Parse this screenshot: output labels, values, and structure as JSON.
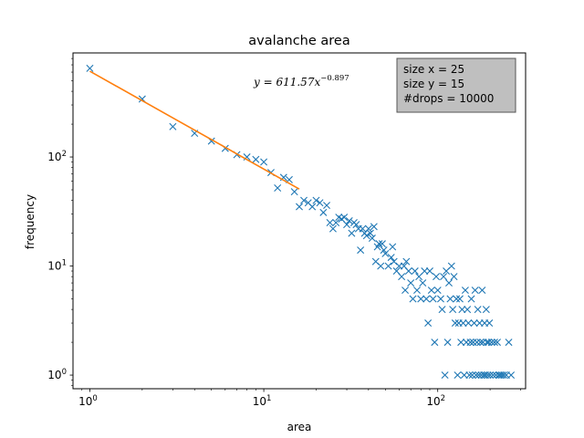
{
  "chart_data": {
    "type": "scatter",
    "title": "avalanche area",
    "xlabel": "area",
    "ylabel": "frequency",
    "xscale": "log",
    "yscale": "log",
    "xlim": [
      0.8,
      320
    ],
    "ylim": [
      0.75,
      900
    ],
    "grid": false,
    "x_ticks": [
      {
        "value": 1,
        "base": "10",
        "exp": "0"
      },
      {
        "value": 10,
        "base": "10",
        "exp": "1"
      },
      {
        "value": 100,
        "base": "10",
        "exp": "2"
      }
    ],
    "y_ticks": [
      {
        "value": 1,
        "base": "10",
        "exp": "0"
      },
      {
        "value": 10,
        "base": "10",
        "exp": "1"
      },
      {
        "value": 100,
        "base": "10",
        "exp": "2"
      }
    ],
    "fit": {
      "label_prefix": "y = 611.57x",
      "label_exponent": "−0.897",
      "a": 611.57,
      "b": -0.897,
      "x_range": [
        1,
        16
      ],
      "color": "#ff7f0e"
    },
    "info_box": {
      "lines": [
        "size x = 25",
        "size y = 15",
        "#drops = 10000"
      ],
      "background": "#bfbfbf",
      "placement": "top-right"
    },
    "series": [
      {
        "marker": "x",
        "color": "#1f77b4",
        "points": [
          [
            1,
            650
          ],
          [
            2,
            340
          ],
          [
            3,
            190
          ],
          [
            4,
            165
          ],
          [
            5,
            140
          ],
          [
            6,
            120
          ],
          [
            7,
            105
          ],
          [
            8,
            100
          ],
          [
            9,
            95
          ],
          [
            10,
            90
          ],
          [
            11,
            72
          ],
          [
            12,
            52
          ],
          [
            13,
            65
          ],
          [
            14,
            62
          ],
          [
            15,
            48
          ],
          [
            16,
            35
          ],
          [
            17,
            40
          ],
          [
            18,
            38
          ],
          [
            19,
            35
          ],
          [
            20,
            40
          ],
          [
            21,
            38
          ],
          [
            22,
            31
          ],
          [
            23,
            36
          ],
          [
            24,
            25
          ],
          [
            25,
            22
          ],
          [
            26,
            25
          ],
          [
            27,
            28
          ],
          [
            28,
            27
          ],
          [
            29,
            28
          ],
          [
            30,
            24
          ],
          [
            31,
            26
          ],
          [
            32,
            20
          ],
          [
            33,
            25
          ],
          [
            34,
            24
          ],
          [
            35,
            22
          ],
          [
            36,
            14
          ],
          [
            37,
            22
          ],
          [
            38,
            20
          ],
          [
            39,
            19
          ],
          [
            40,
            22
          ],
          [
            41,
            20
          ],
          [
            42,
            18
          ],
          [
            43,
            23
          ],
          [
            44,
            11
          ],
          [
            45,
            15
          ],
          [
            46,
            16
          ],
          [
            47,
            10
          ],
          [
            48,
            16
          ],
          [
            49,
            14
          ],
          [
            50,
            13
          ],
          [
            52,
            10
          ],
          [
            54,
            12
          ],
          [
            55,
            15
          ],
          [
            56,
            11
          ],
          [
            58,
            9
          ],
          [
            60,
            10
          ],
          [
            62,
            8
          ],
          [
            64,
            10
          ],
          [
            65,
            6
          ],
          [
            66,
            11
          ],
          [
            68,
            9
          ],
          [
            70,
            7
          ],
          [
            72,
            5
          ],
          [
            74,
            9
          ],
          [
            76,
            6
          ],
          [
            78,
            8
          ],
          [
            80,
            5
          ],
          [
            82,
            7
          ],
          [
            84,
            9
          ],
          [
            86,
            5
          ],
          [
            88,
            3
          ],
          [
            90,
            9
          ],
          [
            92,
            6
          ],
          [
            94,
            5
          ],
          [
            96,
            2
          ],
          [
            98,
            8
          ],
          [
            100,
            6
          ],
          [
            104,
            5
          ],
          [
            106,
            4
          ],
          [
            108,
            8
          ],
          [
            110,
            1
          ],
          [
            112,
            9
          ],
          [
            114,
            2
          ],
          [
            116,
            7
          ],
          [
            118,
            5
          ],
          [
            120,
            10
          ],
          [
            122,
            4
          ],
          [
            124,
            8
          ],
          [
            126,
            3
          ],
          [
            128,
            5
          ],
          [
            130,
            1
          ],
          [
            132,
            3
          ],
          [
            134,
            5
          ],
          [
            136,
            2
          ],
          [
            138,
            4
          ],
          [
            140,
            3
          ],
          [
            142,
            1
          ],
          [
            144,
            6
          ],
          [
            146,
            2
          ],
          [
            148,
            4
          ],
          [
            150,
            3
          ],
          [
            152,
            1
          ],
          [
            154,
            2
          ],
          [
            156,
            5
          ],
          [
            158,
            1
          ],
          [
            160,
            2
          ],
          [
            162,
            3
          ],
          [
            164,
            6
          ],
          [
            166,
            1
          ],
          [
            168,
            2
          ],
          [
            170,
            4
          ],
          [
            172,
            1
          ],
          [
            174,
            3
          ],
          [
            176,
            2
          ],
          [
            178,
            1
          ],
          [
            180,
            6
          ],
          [
            182,
            2
          ],
          [
            184,
            1
          ],
          [
            186,
            3
          ],
          [
            188,
            1
          ],
          [
            190,
            4
          ],
          [
            192,
            2
          ],
          [
            194,
            1
          ],
          [
            196,
            2
          ],
          [
            198,
            3
          ],
          [
            200,
            1
          ],
          [
            204,
            2
          ],
          [
            208,
            1
          ],
          [
            212,
            2
          ],
          [
            216,
            1
          ],
          [
            220,
            2
          ],
          [
            224,
            1
          ],
          [
            228,
            1
          ],
          [
            234,
            1
          ],
          [
            240,
            1
          ],
          [
            248,
            1
          ],
          [
            256,
            2
          ],
          [
            264,
            1
          ]
        ]
      }
    ]
  }
}
